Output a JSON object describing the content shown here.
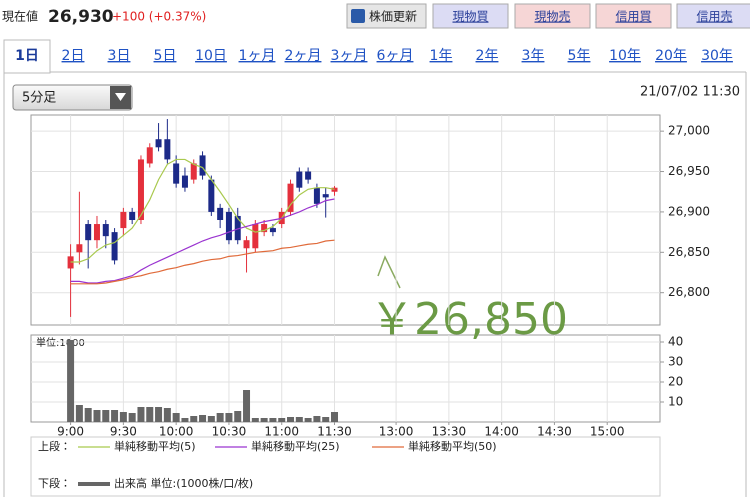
{
  "header": {
    "price_label": "現在値",
    "price": "26,930",
    "change": "+100 (+0.37%)"
  },
  "buttons": [
    "株価更新",
    "現物買",
    "現物売",
    "信用買",
    "信用売"
  ],
  "tabs": [
    "1日",
    "2日",
    "3日",
    "5日",
    "10日",
    "1ヶ月",
    "2ヶ月",
    "3ヶ月",
    "6ヶ月",
    "1年",
    "2年",
    "3年",
    "5年",
    "10年",
    "20年",
    "30年"
  ],
  "interval_select": "5分足",
  "datetime": "21/07/02 11:30",
  "chart_data": [
    {
      "type": "candlestick",
      "legend_label": "上段：",
      "annotation": "￥26,850",
      "x": [
        0,
        1,
        2,
        3,
        4,
        5,
        6,
        7,
        8,
        9,
        10,
        11,
        12,
        13,
        14,
        15,
        16,
        17,
        18,
        19,
        20,
        21,
        22,
        23,
        24,
        25,
        26,
        27,
        28,
        29,
        30
      ],
      "open": [
        26830,
        26850,
        26885,
        26865,
        26885,
        26875,
        26880,
        26900,
        26890,
        26960,
        26990,
        26990,
        26960,
        26945,
        26940,
        26970,
        26940,
        26905,
        26900,
        26895,
        26855,
        26855,
        26875,
        26880,
        26885,
        26900,
        26950,
        26950,
        26930,
        26922,
        26925
      ],
      "high": [
        26860,
        26925,
        26890,
        26895,
        26890,
        26880,
        26905,
        26905,
        26970,
        26985,
        27010,
        27015,
        26970,
        26955,
        26965,
        26975,
        26945,
        26910,
        26905,
        26905,
        26870,
        26890,
        26890,
        26885,
        26905,
        26940,
        26955,
        26955,
        26935,
        26930,
        26932
      ],
      "low": [
        26770,
        26835,
        26830,
        26855,
        26855,
        26835,
        26870,
        26885,
        26885,
        26955,
        26975,
        26960,
        26930,
        26925,
        26935,
        26940,
        26895,
        26880,
        26860,
        26860,
        26825,
        26850,
        26870,
        26870,
        26880,
        26895,
        26925,
        26935,
        26905,
        26893,
        26920
      ],
      "close": [
        26845,
        26860,
        26865,
        26885,
        26870,
        26840,
        26900,
        26890,
        26965,
        26980,
        26980,
        26965,
        26935,
        26930,
        26960,
        26945,
        26900,
        26890,
        26865,
        26865,
        26865,
        26885,
        26885,
        26875,
        26900,
        26935,
        26930,
        26940,
        26910,
        26918,
        26930
      ],
      "up_color": "#e4303c",
      "down_color": "#1c2a88",
      "series": [
        {
          "name": "単純移動平均(5)",
          "color": "#a9c94e",
          "values": [
            26838,
            26838,
            26842,
            26852,
            26859,
            26862,
            26871,
            26880,
            26896,
            26915,
            26940,
            26959,
            26965,
            26965,
            26959,
            26955,
            26940,
            26925,
            26909,
            26892,
            26880,
            26875,
            26877,
            26882,
            26892,
            26909,
            26921,
            26928,
            26930,
            26930,
            26928
          ]
        },
        {
          "name": "単純移動平均(25)",
          "color": "#9a34d0",
          "values": [
            26814,
            26814,
            26812,
            26812,
            26814,
            26815,
            26818,
            26821,
            26828,
            26834,
            26839,
            26844,
            26849,
            26854,
            26859,
            26864,
            26868,
            26871,
            26875,
            26879,
            26882,
            26885,
            26888,
            26890,
            26892,
            26896,
            26900,
            26905,
            26909,
            26914,
            26916
          ]
        },
        {
          "name": "単純移動平均(50)",
          "color": "#e06a3a",
          "values": [
            26811,
            26811,
            26811,
            26811,
            26812,
            26814,
            26816,
            26819,
            26821,
            26824,
            26826,
            26829,
            26831,
            26834,
            26836,
            26839,
            26841,
            26842,
            26845,
            26846,
            26848,
            26850,
            26851,
            26852,
            26855,
            26856,
            26858,
            26860,
            26861,
            26864,
            26865
          ]
        }
      ],
      "xlim": [
        -4.5,
        67
      ],
      "ylim": [
        26760,
        27020
      ],
      "yticks": [
        {
          "value": 26800,
          "label": "26,800"
        },
        {
          "value": 26850,
          "label": "26,850"
        },
        {
          "value": 26900,
          "label": "26,900"
        },
        {
          "value": 26950,
          "label": "26,950"
        },
        {
          "value": 27000,
          "label": "27,000"
        }
      ],
      "grid": true
    },
    {
      "type": "bar",
      "legend_label": "下段：",
      "unit_label": "単位:1000",
      "x": [
        0,
        1,
        2,
        3,
        4,
        5,
        6,
        7,
        8,
        9,
        10,
        11,
        12,
        13,
        14,
        15,
        16,
        17,
        18,
        19,
        20,
        21,
        22,
        23,
        24,
        25,
        26,
        27,
        28,
        29,
        30
      ],
      "series": [
        {
          "name": "出来高 単位:(1000株/口/枚)",
          "color": "#666666",
          "values": [
            41,
            8.5,
            7,
            6,
            6,
            6,
            5,
            4.5,
            7.5,
            7.5,
            7.5,
            7,
            4.5,
            2,
            3,
            3.5,
            3,
            4.5,
            4.5,
            5.5,
            16,
            2,
            2,
            2,
            2,
            2.5,
            2.5,
            2,
            3,
            2.5,
            5
          ]
        }
      ],
      "xlim": [
        -4.5,
        67
      ],
      "ylim": [
        0,
        43.5
      ],
      "yticks": [
        10,
        20,
        30,
        40
      ],
      "xticks": [
        {
          "value": 0,
          "label": "9:00"
        },
        {
          "value": 6,
          "label": "9:30"
        },
        {
          "value": 12,
          "label": "10:00"
        },
        {
          "value": 18,
          "label": "10:30"
        },
        {
          "value": 24,
          "label": "11:00"
        },
        {
          "value": 30,
          "label": "11:30"
        },
        {
          "value": 37,
          "label": "13:00"
        },
        {
          "value": 43,
          "label": "13:30"
        },
        {
          "value": 49,
          "label": "14:00"
        },
        {
          "value": 55,
          "label": "14:30"
        },
        {
          "value": 61,
          "label": "15:00"
        }
      ],
      "grid": true
    }
  ]
}
